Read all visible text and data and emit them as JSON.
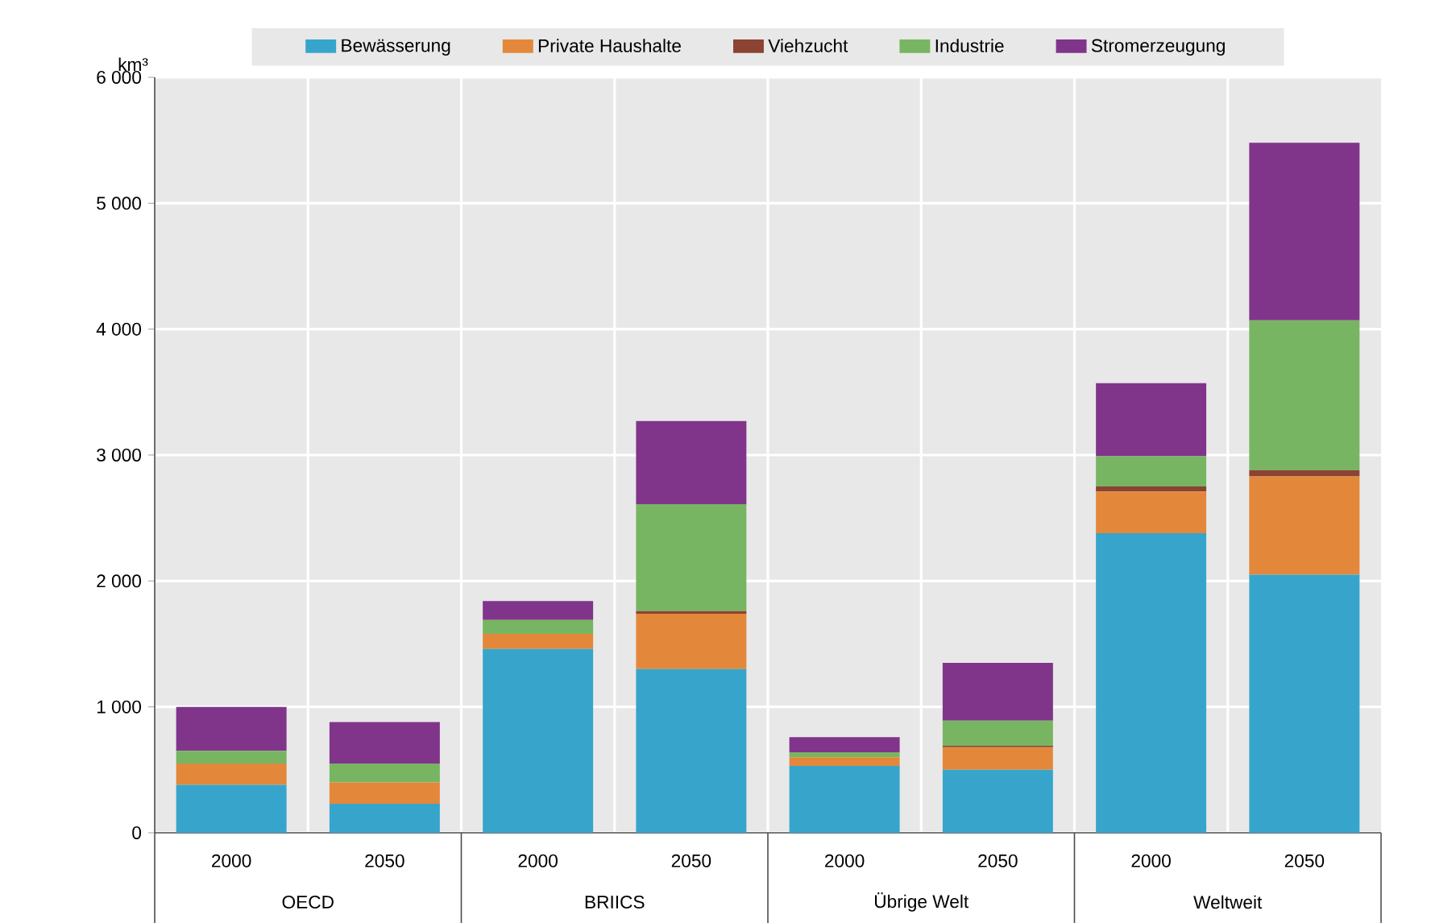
{
  "chart_data": {
    "type": "bar",
    "stacked": true,
    "ylabel": "km³",
    "categories": [
      "2000",
      "2050",
      "2000",
      "2050",
      "2000",
      "2050",
      "2000",
      "2050"
    ],
    "annotations": [
      "OECD",
      "BRIICS",
      "Übrige Welt",
      "Weltweit"
    ],
    "series": [
      {
        "name": "Bewässerung",
        "color": "#37a5cb",
        "values": [
          380,
          230,
          1460,
          1300,
          530,
          500,
          2380,
          2050
        ]
      },
      {
        "name": "Private Haushalte",
        "color": "#e3883a",
        "values": [
          170,
          170,
          120,
          440,
          70,
          180,
          330,
          780
        ]
      },
      {
        "name": "Viehzucht",
        "color": "#8b4332",
        "values": [
          0,
          0,
          0,
          20,
          0,
          10,
          40,
          50
        ]
      },
      {
        "name": "Industrie",
        "color": "#78b562",
        "values": [
          100,
          150,
          110,
          850,
          40,
          200,
          240,
          1190
        ]
      },
      {
        "name": "Stromerzeugung",
        "color": "#80358b",
        "values": [
          350,
          330,
          150,
          660,
          120,
          460,
          580,
          1410
        ]
      }
    ],
    "ylim": [
      0,
      6000
    ],
    "yticks": [
      0,
      {
        "value": 1000,
        "label": "1 000"
      },
      {
        "value": 2000,
        "label": "2 000"
      },
      {
        "value": 3000,
        "label": "3 000"
      },
      {
        "value": 4000,
        "label": "4 000"
      },
      {
        "value": 5000,
        "label": "5 000"
      },
      {
        "value": 6000,
        "label": "6 000"
      }
    ],
    "grid": true,
    "legend": "top"
  }
}
